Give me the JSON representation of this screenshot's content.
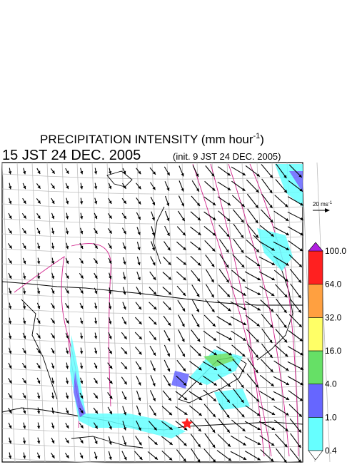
{
  "title": {
    "main": "PRECIPITATION INTENSITY (mm hour",
    "superscript": "-1",
    "close": ")"
  },
  "subtitle": {
    "time": "15 JST 24 DEC. 2005",
    "init": "(init. 9 JST 24 DEC. 2005)"
  },
  "reference_vector": {
    "label": "20 ms",
    "superscript": "-1"
  },
  "legend": {
    "levels": [
      "0.4",
      "1.0",
      "4.0",
      "16.0",
      "32.0",
      "64.0",
      "100.0"
    ],
    "colors": [
      "#66ffff",
      "#6666ff",
      "#66e066",
      "#ffff66",
      "#ffa040",
      "#ff2020"
    ],
    "over_color": "#b020e0",
    "under_color": "#ffffff"
  }
}
